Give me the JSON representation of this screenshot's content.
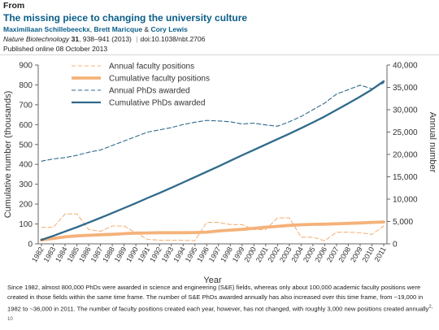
{
  "header": {
    "from": "From",
    "title": "The missing piece to changing the university culture",
    "authors": [
      "Maximiliaan Schillebeeckx",
      "Brett Maricque",
      "Cory Lewis"
    ],
    "author_sep": ",",
    "author_and": "&",
    "journal": "Nature Biotechnology",
    "volume": "31",
    "pages": ", 938–941 (2013)",
    "divider": "|",
    "doi": "doi:10.1038/nbt.2706",
    "published": "Published online 08 October 2013"
  },
  "caption": {
    "text": "Since 1982, almost 800,000 PhDs were awarded in science and engineering (S&E) fields, whereas only about 100,000 academic faculty positions were created in those fields within the same time frame. The number of S&E PhDs awarded annually has also increased over this time frame, from ~19,000 in 1982 to ~36,000 in 2011. The number of faculty positions created each year, however, has not changed, with roughly 3,000 new positions created annually",
    "refs": "2, 10"
  },
  "chart_data": {
    "type": "line",
    "xlabel": "Year",
    "ylabel_left": "Cumulative number (thousands)",
    "ylabel_right": "Annual number",
    "ylim_left": [
      0,
      900
    ],
    "ylim_right": [
      0,
      40000
    ],
    "yticks_left": [
      "0",
      "100",
      "200",
      "300",
      "400",
      "500",
      "600",
      "700",
      "800",
      "900"
    ],
    "yticks_right": [
      "0",
      "5,000",
      "10,000",
      "15,000",
      "20,000",
      "25,000",
      "30,000",
      "35,000",
      "40,000"
    ],
    "grid": false,
    "legend_position": "top-left",
    "x": [
      "1982",
      "1983",
      "1984",
      "1985",
      "1986",
      "1987",
      "1988",
      "1989",
      "1990",
      "1991",
      "1992",
      "1993",
      "1994",
      "1995",
      "1996",
      "1997",
      "1998",
      "1999",
      "2000",
      "2001",
      "2002",
      "2003",
      "2004",
      "2005",
      "2006",
      "2007",
      "2008",
      "2009",
      "2010",
      "2011"
    ],
    "series": [
      {
        "name": "Annual faculty positions",
        "axis": "right",
        "style": "dashed",
        "color": "#f4b27a",
        "values": [
          3700,
          3700,
          6700,
          6700,
          3200,
          2800,
          4000,
          4000,
          2500,
          1000,
          800,
          800,
          800,
          700,
          4800,
          4800,
          4300,
          4300,
          3200,
          3200,
          5800,
          5800,
          1500,
          1500,
          700,
          2600,
          2600,
          2500,
          2100,
          4000
        ]
      },
      {
        "name": "Cumulative faculty positions",
        "axis": "left",
        "style": "solid",
        "color": "#f4b27a",
        "values": [
          20,
          27,
          35,
          40,
          43,
          46,
          48,
          51,
          54,
          55,
          56,
          56,
          56,
          57,
          59,
          65,
          69,
          73,
          78,
          84,
          88,
          93,
          96,
          98,
          99,
          101,
          103,
          105,
          108,
          110
        ]
      },
      {
        "name": "Annual PhDs awarded",
        "axis": "right",
        "style": "dashed",
        "color": "#2f6a8c",
        "values": [
          18500,
          19000,
          19300,
          19800,
          20500,
          21000,
          22000,
          23000,
          24000,
          25000,
          25500,
          26000,
          26700,
          27200,
          27600,
          27500,
          27300,
          26800,
          27000,
          26600,
          26300,
          27300,
          28500,
          30000,
          31500,
          33500,
          34500,
          35500,
          34700,
          36000
        ]
      },
      {
        "name": "Cumulative PhDs awarded",
        "axis": "left",
        "style": "solid",
        "color": "#2f6a8c",
        "values": [
          20,
          40,
          62,
          84,
          107,
          131,
          155,
          180,
          205,
          231,
          256,
          282,
          309,
          336,
          363,
          390,
          418,
          446,
          473,
          500,
          527,
          554,
          582,
          611,
          641,
          674,
          707,
          741,
          777,
          818
        ]
      }
    ]
  }
}
